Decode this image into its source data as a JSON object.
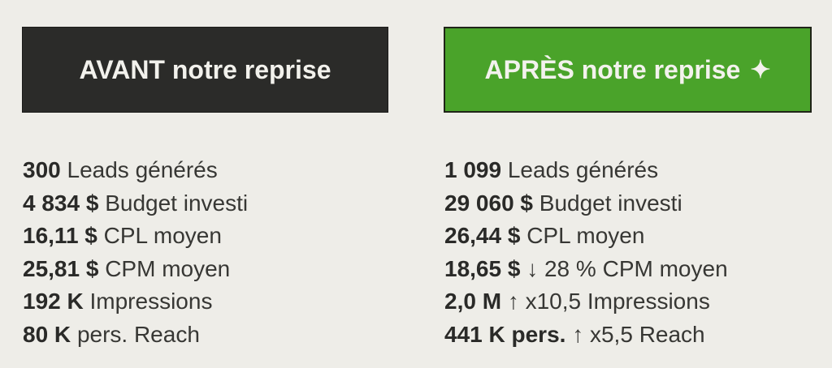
{
  "page": {
    "background_color": "#EEEDE8"
  },
  "columns": [
    {
      "name": "avant",
      "header": {
        "label": "AVANT notre reprise",
        "star": "",
        "background_color": "#2B2B29",
        "text_color": "#F2F1EC"
      },
      "stats": [
        {
          "value": "300",
          "change": "",
          "label": "Leads générés"
        },
        {
          "value": "4 834 $",
          "change": "",
          "label": "Budget investi"
        },
        {
          "value": "16,11 $",
          "change": "",
          "label": "CPL moyen"
        },
        {
          "value": "25,81 $",
          "change": "",
          "label": "CPM moyen"
        },
        {
          "value": "192 K",
          "change": "",
          "label": "Impressions"
        },
        {
          "value": "80 K",
          "change": "",
          "label": "pers. Reach"
        }
      ]
    },
    {
      "name": "apres",
      "header": {
        "label": "APRÈS notre reprise",
        "star": "✦",
        "background_color": "#4AA32A",
        "text_color": "#F3F2ED"
      },
      "stats": [
        {
          "value": "1 099",
          "change": "",
          "label": "Leads générés"
        },
        {
          "value": "29 060 $",
          "change": "",
          "label": "Budget investi"
        },
        {
          "value": "26,44 $",
          "change": "",
          "label": "CPL moyen"
        },
        {
          "value": "18,65 $",
          "change": "↓ 28 %",
          "label": "CPM moyen"
        },
        {
          "value": "2,0 M",
          "change": "↑ x10,5",
          "label": "Impressions"
        },
        {
          "value": "441 K pers.",
          "change": "↑ x5,5",
          "label": "Reach"
        }
      ]
    }
  ],
  "chart_data": {
    "type": "table",
    "title": "AVANT notre reprise vs APRÈS notre reprise",
    "columns": [
      "AVANT notre reprise",
      "APRÈS notre reprise"
    ],
    "metrics": [
      "Leads générés",
      "Budget investi ($)",
      "CPL moyen ($)",
      "CPM moyen ($)",
      "Impressions",
      "Reach (personnes)"
    ],
    "series": [
      {
        "name": "AVANT notre reprise",
        "leads": 300,
        "budget_usd": 4834,
        "cpl_usd": 16.11,
        "cpm_usd": 25.81,
        "impressions": 192000,
        "reach_persons": 80000
      },
      {
        "name": "APRÈS notre reprise",
        "leads": 1099,
        "budget_usd": 29060,
        "cpl_usd": 26.44,
        "cpm_usd": 18.65,
        "cpm_change_pct": -28,
        "impressions": 2000000,
        "impressions_multiplier": 10.5,
        "reach_persons": 441000,
        "reach_multiplier": 5.5
      }
    ]
  }
}
